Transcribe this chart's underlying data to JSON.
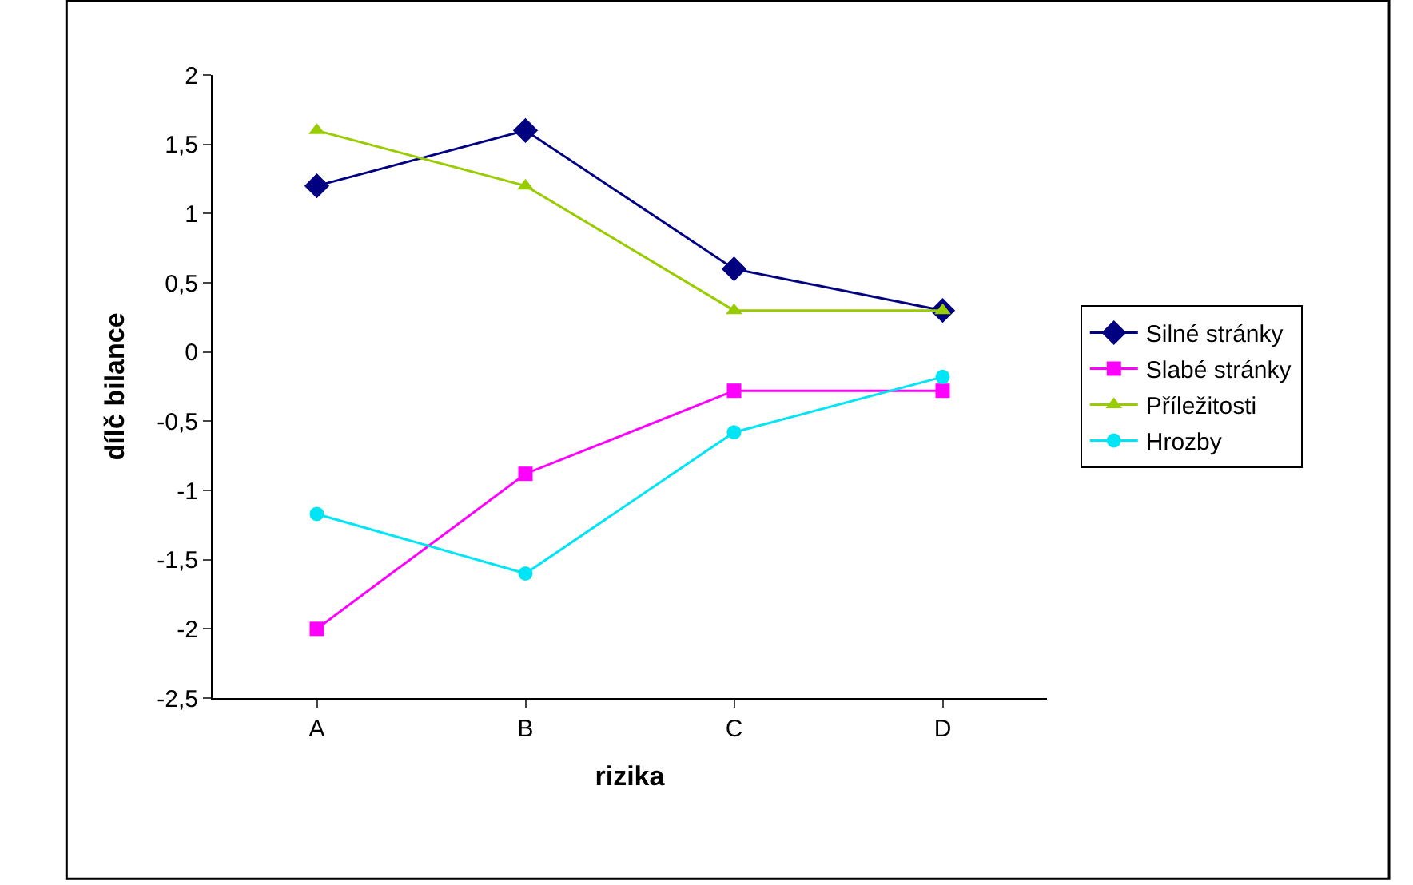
{
  "chart_data": {
    "type": "line",
    "xlabel": "rizika",
    "ylabel": "dílč bilance",
    "categories": [
      "A",
      "B",
      "C",
      "D"
    ],
    "series": [
      {
        "name": "Silné stránky",
        "color": "#000080",
        "marker": "diamond",
        "values": [
          1.2,
          1.6,
          0.6,
          0.3
        ]
      },
      {
        "name": "Slabé stránky",
        "color": "#ff00ff",
        "marker": "square",
        "values": [
          -2,
          -0.88,
          -0.28,
          -0.28
        ]
      },
      {
        "name": "Příležitosti",
        "color": "#99cc00",
        "marker": "triangle",
        "values": [
          1.6,
          1.2,
          0.3,
          0.3
        ]
      },
      {
        "name": "Hrozby",
        "color": "#00e5f5",
        "marker": "circle",
        "values": [
          -1.17,
          -1.6,
          -0.58,
          -0.18
        ]
      }
    ],
    "ylim": [
      -2.5,
      2
    ],
    "yticks": [
      {
        "value": -2.5,
        "label": "-2,5"
      },
      -2,
      {
        "value": -1.5,
        "label": "-1,5"
      },
      -1,
      {
        "value": -0.5,
        "label": "-0,5"
      },
      0,
      {
        "value": 0.5,
        "label": "0,5"
      },
      1,
      {
        "value": 1.5,
        "label": "1,5"
      },
      2
    ],
    "grid": false,
    "legend": "right",
    "line_style": "solid"
  }
}
